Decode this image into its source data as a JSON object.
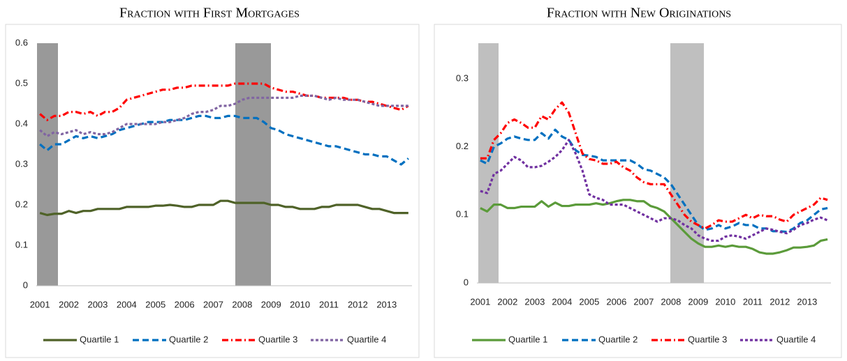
{
  "chart_data": [
    {
      "type": "line",
      "title": "Fraction with First Mortgages",
      "categories": [
        "2001",
        null,
        null,
        null,
        "2002",
        null,
        null,
        null,
        "2003",
        null,
        null,
        null,
        "2004",
        null,
        null,
        null,
        "2005",
        null,
        null,
        null,
        "2006",
        null,
        null,
        null,
        "2007",
        null,
        null,
        null,
        "2008",
        null,
        null,
        null,
        "2009",
        null,
        null,
        null,
        "2010",
        null,
        null,
        null,
        "2011",
        null,
        null,
        null,
        "2012",
        null,
        null,
        null,
        "2013",
        null,
        null,
        null
      ],
      "ylim": [
        0,
        0.6
      ],
      "yticks": [
        0,
        0.1,
        0.2,
        0.3,
        0.4,
        0.5,
        0.6
      ],
      "legend": "bottom",
      "series": [
        {
          "name": "Quartile 1",
          "color": "#4f6228",
          "style": "solid",
          "values": [
            0.18,
            0.175,
            0.178,
            0.178,
            0.185,
            0.18,
            0.185,
            0.185,
            0.19,
            0.19,
            0.19,
            0.19,
            0.195,
            0.195,
            0.195,
            0.195,
            0.198,
            0.198,
            0.2,
            0.198,
            0.195,
            0.195,
            0.2,
            0.2,
            0.2,
            0.21,
            0.21,
            0.205,
            0.205,
            0.205,
            0.205,
            0.205,
            0.2,
            0.2,
            0.195,
            0.195,
            0.19,
            0.19,
            0.19,
            0.195,
            0.195,
            0.2,
            0.2,
            0.2,
            0.2,
            0.195,
            0.19,
            0.19,
            0.185,
            0.18,
            0.18,
            0.18
          ]
        },
        {
          "name": "Quartile 2",
          "color": "#0070c0",
          "style": "dashed",
          "values": [
            0.35,
            0.335,
            0.35,
            0.35,
            0.36,
            0.37,
            0.365,
            0.37,
            0.365,
            0.37,
            0.375,
            0.385,
            0.39,
            0.395,
            0.4,
            0.405,
            0.405,
            0.405,
            0.41,
            0.41,
            0.41,
            0.415,
            0.42,
            0.42,
            0.415,
            0.415,
            0.42,
            0.42,
            0.415,
            0.415,
            0.415,
            0.405,
            0.39,
            0.385,
            0.375,
            0.37,
            0.365,
            0.36,
            0.355,
            0.35,
            0.345,
            0.345,
            0.34,
            0.335,
            0.33,
            0.325,
            0.325,
            0.32,
            0.32,
            0.31,
            0.3,
            0.315
          ]
        },
        {
          "name": "Quartile 3",
          "color": "#ff0000",
          "style": "dashdot",
          "values": [
            0.425,
            0.41,
            0.42,
            0.42,
            0.43,
            0.43,
            0.425,
            0.43,
            0.42,
            0.43,
            0.43,
            0.44,
            0.46,
            0.465,
            0.47,
            0.475,
            0.48,
            0.485,
            0.485,
            0.49,
            0.49,
            0.495,
            0.495,
            0.495,
            0.495,
            0.495,
            0.495,
            0.5,
            0.5,
            0.5,
            0.5,
            0.5,
            0.49,
            0.485,
            0.48,
            0.48,
            0.475,
            0.47,
            0.47,
            0.465,
            0.465,
            0.465,
            0.465,
            0.46,
            0.46,
            0.455,
            0.455,
            0.45,
            0.445,
            0.44,
            0.435,
            0.445
          ]
        },
        {
          "name": "Quartile 4",
          "color": "#8064a2",
          "style": "dotted",
          "values": [
            0.385,
            0.37,
            0.38,
            0.375,
            0.38,
            0.385,
            0.375,
            0.38,
            0.375,
            0.375,
            0.38,
            0.39,
            0.4,
            0.4,
            0.4,
            0.4,
            0.4,
            0.405,
            0.405,
            0.41,
            0.415,
            0.425,
            0.43,
            0.43,
            0.435,
            0.445,
            0.445,
            0.45,
            0.46,
            0.465,
            0.465,
            0.465,
            0.465,
            0.465,
            0.465,
            0.465,
            0.47,
            0.47,
            0.47,
            0.465,
            0.46,
            0.465,
            0.46,
            0.46,
            0.46,
            0.455,
            0.45,
            0.445,
            0.445,
            0.445,
            0.445,
            0.445
          ]
        }
      ]
    },
    {
      "type": "line",
      "title": "Fraction with New Originations",
      "categories": [
        "2001",
        null,
        null,
        null,
        "2002",
        null,
        null,
        null,
        "2003",
        null,
        null,
        null,
        "2004",
        null,
        null,
        null,
        "2005",
        null,
        null,
        null,
        "2006",
        null,
        null,
        null,
        "2007",
        null,
        null,
        null,
        "2008",
        null,
        null,
        null,
        "2009",
        null,
        null,
        null,
        "2010",
        null,
        null,
        null,
        "2011",
        null,
        null,
        null,
        "2012",
        null,
        null,
        null,
        "2013",
        null,
        null,
        null
      ],
      "ylim": [
        0,
        0.35
      ],
      "yticks": [
        0,
        0.1,
        0.2,
        0.3
      ],
      "legend": "bottom",
      "series": [
        {
          "name": "Quartile 1",
          "color": "#5b9b3a",
          "style": "solid",
          "values": [
            0.11,
            0.105,
            0.115,
            0.115,
            0.11,
            0.11,
            0.112,
            0.112,
            0.112,
            0.12,
            0.112,
            0.118,
            0.113,
            0.113,
            0.115,
            0.115,
            0.115,
            0.117,
            0.115,
            0.117,
            0.12,
            0.122,
            0.122,
            0.12,
            0.12,
            0.113,
            0.11,
            0.105,
            0.095,
            0.085,
            0.075,
            0.065,
            0.058,
            0.053,
            0.053,
            0.055,
            0.053,
            0.055,
            0.053,
            0.053,
            0.05,
            0.045,
            0.043,
            0.043,
            0.045,
            0.048,
            0.052,
            0.052,
            0.053,
            0.055,
            0.062,
            0.064
          ]
        },
        {
          "name": "Quartile 2",
          "color": "#0070c0",
          "style": "dashed",
          "values": [
            0.18,
            0.175,
            0.2,
            0.205,
            0.212,
            0.215,
            0.212,
            0.21,
            0.21,
            0.22,
            0.212,
            0.225,
            0.215,
            0.21,
            0.195,
            0.188,
            0.187,
            0.185,
            0.18,
            0.18,
            0.18,
            0.18,
            0.18,
            0.175,
            0.167,
            0.165,
            0.16,
            0.155,
            0.145,
            0.13,
            0.115,
            0.1,
            0.085,
            0.078,
            0.08,
            0.085,
            0.08,
            0.083,
            0.088,
            0.085,
            0.085,
            0.08,
            0.08,
            0.076,
            0.076,
            0.075,
            0.08,
            0.088,
            0.092,
            0.1,
            0.108,
            0.11
          ]
        },
        {
          "name": "Quartile 3",
          "color": "#ff0000",
          "style": "dashdot",
          "values": [
            0.183,
            0.183,
            0.21,
            0.22,
            0.235,
            0.24,
            0.235,
            0.228,
            0.228,
            0.245,
            0.24,
            0.255,
            0.265,
            0.25,
            0.22,
            0.19,
            0.182,
            0.18,
            0.175,
            0.175,
            0.178,
            0.17,
            0.165,
            0.155,
            0.148,
            0.145,
            0.145,
            0.145,
            0.13,
            0.115,
            0.1,
            0.09,
            0.085,
            0.08,
            0.085,
            0.092,
            0.09,
            0.09,
            0.095,
            0.1,
            0.095,
            0.1,
            0.098,
            0.098,
            0.093,
            0.09,
            0.1,
            0.105,
            0.11,
            0.115,
            0.125,
            0.122
          ]
        },
        {
          "name": "Quartile 4",
          "color": "#7030a0",
          "style": "dotted",
          "values": [
            0.135,
            0.132,
            0.16,
            0.165,
            0.175,
            0.185,
            0.18,
            0.17,
            0.17,
            0.172,
            0.178,
            0.185,
            0.195,
            0.21,
            0.19,
            0.165,
            0.13,
            0.125,
            0.122,
            0.115,
            0.115,
            0.115,
            0.11,
            0.105,
            0.1,
            0.095,
            0.09,
            0.095,
            0.095,
            0.092,
            0.085,
            0.08,
            0.07,
            0.065,
            0.062,
            0.062,
            0.068,
            0.07,
            0.068,
            0.065,
            0.07,
            0.075,
            0.08,
            0.078,
            0.075,
            0.073,
            0.078,
            0.085,
            0.088,
            0.093,
            0.096,
            0.092
          ]
        }
      ]
    }
  ]
}
